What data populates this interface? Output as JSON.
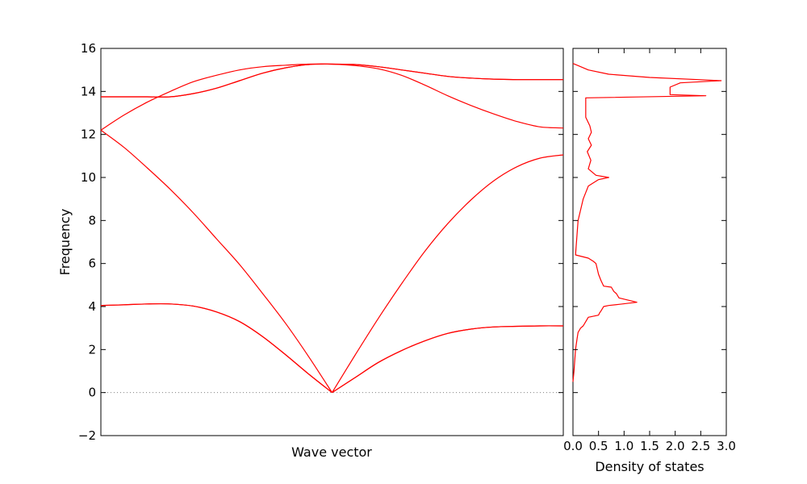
{
  "chart_data": [
    {
      "type": "line",
      "title": "",
      "xlabel": "Wave vector",
      "ylabel": "Frequency",
      "ylim": [
        -2,
        16
      ],
      "xlim": [
        0,
        1
      ],
      "yticks": [
        -2,
        0,
        2,
        4,
        6,
        8,
        10,
        12,
        14,
        16
      ],
      "ytick_labels": [
        "−2",
        "0",
        "2",
        "4",
        "6",
        "8",
        "10",
        "12",
        "14",
        "16"
      ],
      "grid": false,
      "reference_line": {
        "y": 0,
        "style": "dotted",
        "color": "#808080"
      },
      "line_color": "#ff0000",
      "series": [
        {
          "x": [
            0,
            0.05,
            0.1,
            0.15,
            0.2,
            0.25,
            0.3,
            0.35,
            0.4,
            0.45,
            0.5,
            0.55,
            0.6,
            0.65,
            0.7,
            0.75,
            0.8,
            0.85,
            0.9,
            0.95,
            1.0
          ],
          "values": [
            4.05,
            4.08,
            4.12,
            4.12,
            4.02,
            3.75,
            3.3,
            2.6,
            1.75,
            0.85,
            0.0,
            0.7,
            1.4,
            1.95,
            2.4,
            2.75,
            2.95,
            3.05,
            3.08,
            3.1,
            3.1
          ]
        },
        {
          "x": [
            0,
            0.05,
            0.1,
            0.15,
            0.2,
            0.25,
            0.3,
            0.35,
            0.4,
            0.45,
            0.5,
            0.55,
            0.6,
            0.65,
            0.7,
            0.75,
            0.8,
            0.85,
            0.9,
            0.95,
            1.0
          ],
          "values": [
            4.05,
            4.08,
            4.12,
            4.12,
            4.02,
            3.75,
            3.3,
            2.6,
            1.75,
            0.85,
            0.0,
            0.7,
            1.4,
            1.95,
            2.4,
            2.75,
            2.95,
            3.05,
            3.08,
            3.1,
            3.1
          ]
        },
        {
          "x": [
            0,
            0.05,
            0.1,
            0.15,
            0.2,
            0.25,
            0.3,
            0.35,
            0.4,
            0.45,
            0.5,
            0.55,
            0.6,
            0.65,
            0.7,
            0.75,
            0.8,
            0.85,
            0.9,
            0.95,
            1.0
          ],
          "values": [
            12.2,
            11.4,
            10.45,
            9.45,
            8.35,
            7.15,
            5.95,
            4.6,
            3.2,
            1.65,
            0.0,
            1.75,
            3.45,
            5.05,
            6.55,
            7.85,
            8.95,
            9.85,
            10.5,
            10.9,
            11.05
          ]
        },
        {
          "x": [
            0,
            0.05,
            0.1,
            0.15,
            0.2,
            0.25,
            0.3,
            0.35,
            0.4,
            0.45,
            0.5,
            0.55,
            0.6,
            0.65,
            0.7,
            0.75,
            0.8,
            0.85,
            0.9,
            0.95,
            1.0
          ],
          "values": [
            12.2,
            12.9,
            13.5,
            14.0,
            14.45,
            14.75,
            15.0,
            15.15,
            15.22,
            15.27,
            15.27,
            15.2,
            15.05,
            14.75,
            14.3,
            13.8,
            13.35,
            12.95,
            12.6,
            12.35,
            12.3
          ]
        },
        {
          "x": [
            0,
            0.05,
            0.1,
            0.15,
            0.2,
            0.25,
            0.3,
            0.35,
            0.4,
            0.45,
            0.5,
            0.55,
            0.6,
            0.65,
            0.7,
            0.75,
            0.8,
            0.85,
            0.9,
            0.95,
            1.0
          ],
          "values": [
            13.75,
            13.75,
            13.75,
            13.75,
            13.9,
            14.15,
            14.5,
            14.85,
            15.1,
            15.25,
            15.27,
            15.25,
            15.15,
            15.0,
            14.85,
            14.7,
            14.62,
            14.57,
            14.55,
            14.55,
            14.55
          ]
        },
        {
          "x": [
            0,
            0.05,
            0.1,
            0.15,
            0.2,
            0.25,
            0.3,
            0.35,
            0.4,
            0.45,
            0.5,
            0.55,
            0.6,
            0.65,
            0.7,
            0.75,
            0.8,
            0.85,
            0.9,
            0.95,
            1.0
          ],
          "values": [
            13.75,
            13.75,
            13.75,
            13.75,
            13.9,
            14.15,
            14.5,
            14.85,
            15.1,
            15.25,
            15.27,
            15.25,
            15.15,
            15.0,
            14.85,
            14.7,
            14.62,
            14.57,
            14.55,
            14.55,
            14.55
          ]
        }
      ]
    },
    {
      "type": "line",
      "title": "",
      "xlabel": "Density of states",
      "ylabel": "",
      "xlim": [
        0,
        3.0
      ],
      "ylim": [
        -2,
        16
      ],
      "xticks": [
        0.0,
        0.5,
        1.0,
        1.5,
        2.0,
        2.5,
        3.0
      ],
      "xtick_labels": [
        "0.0",
        "0.5",
        "1.0",
        "1.5",
        "2.0",
        "2.5",
        "3.0"
      ],
      "grid": false,
      "line_color": "#ff0000",
      "series": [
        {
          "x": [
            0.0,
            0.02,
            0.05,
            0.08,
            0.1,
            0.15,
            0.2,
            0.25,
            0.3,
            0.5,
            0.52,
            0.55,
            0.6,
            0.7,
            0.9,
            1.25,
            0.9,
            0.85,
            0.8,
            0.75,
            0.6,
            0.55,
            0.5,
            0.45,
            0.4,
            0.3,
            0.05,
            0.1,
            0.2,
            0.3,
            0.5,
            0.7,
            0.45,
            0.3,
            0.35,
            0.28,
            0.36,
            0.3,
            0.36,
            0.33,
            0.25,
            0.25,
            2.6,
            1.9,
            1.9,
            2.1,
            2.9,
            1.5,
            0.7,
            0.3,
            0.1,
            0.0
          ],
          "y": [
            0.5,
            1.0,
            2.0,
            2.5,
            2.8,
            3.0,
            3.1,
            3.3,
            3.5,
            3.6,
            3.7,
            3.8,
            4.0,
            4.05,
            4.1,
            4.2,
            4.4,
            4.6,
            4.7,
            4.9,
            4.95,
            5.2,
            5.5,
            6.0,
            6.1,
            6.25,
            6.4,
            8.0,
            9.0,
            9.6,
            9.9,
            10.0,
            10.1,
            10.4,
            10.8,
            11.2,
            11.5,
            11.8,
            12.1,
            12.4,
            12.8,
            13.7,
            13.8,
            13.85,
            14.2,
            14.4,
            14.5,
            14.65,
            14.8,
            15.0,
            15.2,
            15.3
          ]
        }
      ]
    }
  ]
}
